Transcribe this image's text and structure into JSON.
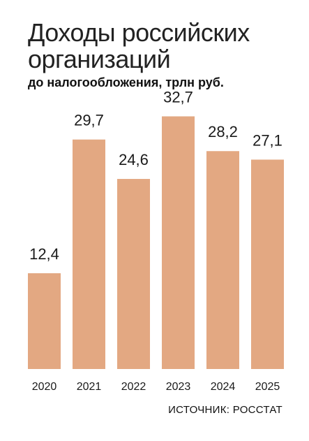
{
  "header": {
    "title": "Доходы российских организаций",
    "subtitle": "до налогообложения, трлн руб."
  },
  "footer": {
    "source": "ИСТОЧНИК: РОССТАТ"
  },
  "colors": {
    "bar": "#e3a882",
    "text": "#1a1a1a"
  },
  "chart_data": {
    "type": "bar",
    "title": "Доходы российских организаций",
    "subtitle": "до налогообложения, трлн руб.",
    "categories": [
      "2020",
      "2021",
      "2022",
      "2023",
      "2024",
      "2025"
    ],
    "values": [
      12.4,
      29.7,
      24.6,
      32.7,
      28.2,
      27.1
    ],
    "value_labels": [
      "12,4",
      "29,7",
      "24,6",
      "32,7",
      "28,2",
      "27,1"
    ],
    "xlabel": "",
    "ylabel": "",
    "ylim": [
      0,
      36
    ],
    "grid": false,
    "legend": "none"
  }
}
